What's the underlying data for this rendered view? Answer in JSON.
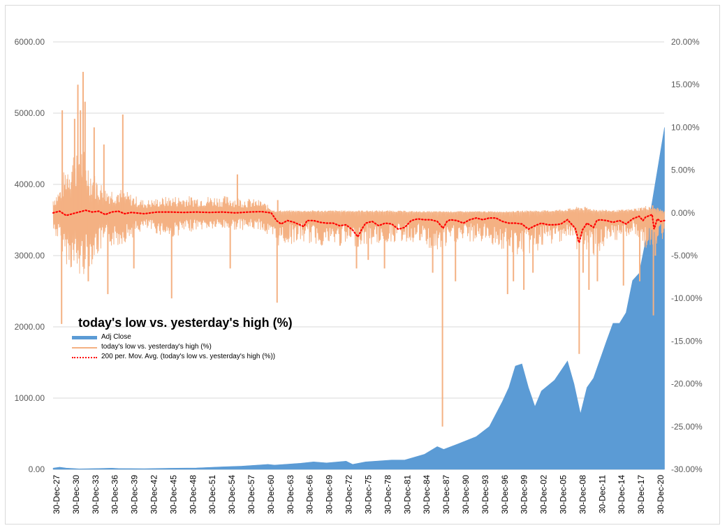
{
  "chart_data": {
    "type": "line",
    "title": "today's low vs. yesterday's high (%)",
    "left_axis": {
      "ticks": [
        "0.00",
        "1000.00",
        "2000.00",
        "3000.00",
        "4000.00",
        "5000.00",
        "6000.00"
      ],
      "range": [
        0,
        6000
      ]
    },
    "right_axis": {
      "ticks": [
        "-30.00%",
        "-25.00%",
        "-20.00%",
        "-15.00%",
        "-10.00%",
        "-5.00%",
        "0.00%",
        "5.00%",
        "10.00%",
        "15.00%",
        "20.00%"
      ],
      "range": [
        -30,
        20
      ]
    },
    "x_axis": {
      "ticks": [
        "30-Dec-27",
        "30-Dec-30",
        "30-Dec-33",
        "30-Dec-36",
        "30-Dec-39",
        "30-Dec-42",
        "30-Dec-45",
        "30-Dec-48",
        "30-Dec-51",
        "30-Dec-54",
        "30-Dec-57",
        "30-Dec-60",
        "30-Dec-63",
        "30-Dec-66",
        "30-Dec-69",
        "30-Dec-72",
        "30-Dec-75",
        "30-Dec-78",
        "30-Dec-81",
        "30-Dec-84",
        "30-Dec-87",
        "30-Dec-90",
        "30-Dec-93",
        "30-Dec-96",
        "30-Dec-99",
        "30-Dec-02",
        "30-Dec-05",
        "30-Dec-08",
        "30-Dec-11",
        "30-Dec-14",
        "30-Dec-17",
        "30-Dec-20"
      ],
      "range": [
        1927.99,
        2021.85
      ]
    },
    "grid": true,
    "legend_position": "left",
    "series": [
      {
        "name": "Adj Close",
        "type": "area",
        "axis": "left",
        "color": "#5b9bd5",
        "points": [
          [
            1928,
            18
          ],
          [
            1929,
            30
          ],
          [
            1930,
            18
          ],
          [
            1932,
            7
          ],
          [
            1935,
            12
          ],
          [
            1937,
            17
          ],
          [
            1938,
            12
          ],
          [
            1942,
            9
          ],
          [
            1946,
            16
          ],
          [
            1950,
            20
          ],
          [
            1954,
            35
          ],
          [
            1957,
            45
          ],
          [
            1961,
            70
          ],
          [
            1962,
            60
          ],
          [
            1966,
            85
          ],
          [
            1968,
            105
          ],
          [
            1970,
            90
          ],
          [
            1973,
            115
          ],
          [
            1974,
            70
          ],
          [
            1976,
            105
          ],
          [
            1980,
            130
          ],
          [
            1982,
            130
          ],
          [
            1985,
            210
          ],
          [
            1987,
            320
          ],
          [
            1988,
            280
          ],
          [
            1990,
            350
          ],
          [
            1993,
            460
          ],
          [
            1995,
            600
          ],
          [
            1997,
            950
          ],
          [
            1998,
            1150
          ],
          [
            1999,
            1450
          ],
          [
            2000,
            1480
          ],
          [
            2001,
            1150
          ],
          [
            2002,
            880
          ],
          [
            2003,
            1100
          ],
          [
            2005,
            1250
          ],
          [
            2007,
            1520
          ],
          [
            2008,
            1200
          ],
          [
            2009,
            780
          ],
          [
            2010,
            1150
          ],
          [
            2011,
            1280
          ],
          [
            2013,
            1800
          ],
          [
            2014,
            2050
          ],
          [
            2015,
            2050
          ],
          [
            2016,
            2200
          ],
          [
            2017,
            2650
          ],
          [
            2018,
            2750
          ],
          [
            2019,
            3200
          ],
          [
            2020,
            3750
          ],
          [
            2021,
            4300
          ],
          [
            2021.9,
            4800
          ]
        ]
      },
      {
        "name": "today's low vs. yesterday's high (%)",
        "type": "line",
        "axis": "right",
        "color": "#f4b183",
        "band": [
          [
            1928,
            -2.5,
            2.0
          ],
          [
            1929,
            -3.5,
            3.0
          ],
          [
            1930,
            -6,
            6
          ],
          [
            1932,
            -8,
            9
          ],
          [
            1934,
            -6,
            5
          ],
          [
            1936,
            -4,
            3
          ],
          [
            1938,
            -4,
            3
          ],
          [
            1942,
            -2,
            1.5
          ],
          [
            1946,
            -3,
            2
          ],
          [
            1950,
            -2,
            2
          ],
          [
            1955,
            -2,
            2
          ],
          [
            1960,
            -2,
            1.5
          ],
          [
            1962,
            -4,
            0.3
          ],
          [
            1966,
            -3.5,
            0.3
          ],
          [
            1970,
            -4,
            0.3
          ],
          [
            1975,
            -4,
            0.3
          ],
          [
            1980,
            -3.5,
            0.3
          ],
          [
            1984,
            -3.5,
            0.2
          ],
          [
            1987,
            -5,
            0.2
          ],
          [
            1990,
            -3.5,
            0.2
          ],
          [
            1995,
            -3.5,
            0.2
          ],
          [
            1998,
            -5,
            0.2
          ],
          [
            2001,
            -5,
            0.3
          ],
          [
            2004,
            -4,
            0.3
          ],
          [
            2007,
            -3,
            0.5
          ],
          [
            2009,
            -5,
            0.8
          ],
          [
            2011,
            -5,
            0.5
          ],
          [
            2014,
            -4,
            0.3
          ],
          [
            2017,
            -2.5,
            0.5
          ],
          [
            2020,
            -5,
            1
          ],
          [
            2021.9,
            -3,
            0.2
          ]
        ],
        "spikes": [
          [
            1929.3,
            -13
          ],
          [
            1929.4,
            12
          ],
          [
            1931.3,
            11
          ],
          [
            1931.8,
            15
          ],
          [
            1932.2,
            12
          ],
          [
            1932.6,
            16.5
          ],
          [
            1932.9,
            13
          ],
          [
            1933.4,
            -8
          ],
          [
            1934.3,
            10
          ],
          [
            1935.8,
            8
          ],
          [
            1936.4,
            -9.5
          ],
          [
            1938.7,
            11.5
          ],
          [
            1940.4,
            -6.5
          ],
          [
            1946.2,
            -10
          ],
          [
            1955.2,
            -6.5
          ],
          [
            1956.3,
            4.5
          ],
          [
            1962.4,
            -10.5
          ],
          [
            1962.5,
            1.5
          ],
          [
            1974.6,
            -6.5
          ],
          [
            1976.4,
            -5.5
          ],
          [
            1978.9,
            -6.5
          ],
          [
            1986.3,
            -7
          ],
          [
            1987.8,
            -25
          ],
          [
            1989.8,
            -8
          ],
          [
            1997.8,
            -9.5
          ],
          [
            1998.7,
            -8
          ],
          [
            2000.3,
            -9
          ],
          [
            2001.7,
            -7
          ],
          [
            2008.8,
            -16.5
          ],
          [
            2009.4,
            -7
          ],
          [
            2010.3,
            -9
          ],
          [
            2011.6,
            -8
          ],
          [
            2015.6,
            -8.5
          ],
          [
            2018.1,
            -8
          ],
          [
            2020.2,
            -12
          ],
          [
            2020.5,
            -5
          ]
        ]
      },
      {
        "name": "200 per. Mov. Avg. (today's low vs. yesterday's high (%))",
        "type": "line",
        "axis": "right",
        "color": "#ff0000",
        "style": "dotted",
        "points": [
          [
            1928,
            0
          ],
          [
            1929,
            0.2
          ],
          [
            1930,
            -0.3
          ],
          [
            1931,
            -0.1
          ],
          [
            1932,
            0.1
          ],
          [
            1933,
            0.3
          ],
          [
            1934,
            0.1
          ],
          [
            1935,
            0.2
          ],
          [
            1936,
            -0.2
          ],
          [
            1937,
            0.1
          ],
          [
            1938,
            0.2
          ],
          [
            1939,
            -0.1
          ],
          [
            1940,
            0.05
          ],
          [
            1942,
            -0.1
          ],
          [
            1944,
            0.1
          ],
          [
            1946,
            0.1
          ],
          [
            1948,
            0.05
          ],
          [
            1950,
            0.1
          ],
          [
            1952,
            0.05
          ],
          [
            1954,
            0.1
          ],
          [
            1956,
            0
          ],
          [
            1958,
            0.1
          ],
          [
            1960,
            0.15
          ],
          [
            1961.5,
            0
          ],
          [
            1962.3,
            -0.9
          ],
          [
            1963,
            -1.3
          ],
          [
            1964,
            -0.9
          ],
          [
            1965,
            -1.1
          ],
          [
            1966.5,
            -1.6
          ],
          [
            1967,
            -0.9
          ],
          [
            1968,
            -0.9
          ],
          [
            1969,
            -1.1
          ],
          [
            1970,
            -1.2
          ],
          [
            1971,
            -1.2
          ],
          [
            1972,
            -1.5
          ],
          [
            1973,
            -1.4
          ],
          [
            1974,
            -2.0
          ],
          [
            1974.8,
            -2.8
          ],
          [
            1975.5,
            -1.8
          ],
          [
            1976,
            -1.2
          ],
          [
            1977,
            -1.0
          ],
          [
            1978,
            -1.5
          ],
          [
            1979,
            -1.2
          ],
          [
            1980,
            -1.3
          ],
          [
            1981,
            -1.9
          ],
          [
            1982,
            -1.7
          ],
          [
            1983,
            -0.9
          ],
          [
            1984,
            -0.7
          ],
          [
            1985,
            -0.8
          ],
          [
            1986,
            -0.8
          ],
          [
            1987,
            -1.0
          ],
          [
            1987.9,
            -1.8
          ],
          [
            1988.5,
            -1.0
          ],
          [
            1989,
            -0.8
          ],
          [
            1990,
            -0.9
          ],
          [
            1991,
            -1.2
          ],
          [
            1992,
            -0.8
          ],
          [
            1993,
            -0.6
          ],
          [
            1994,
            -0.8
          ],
          [
            1995,
            -0.6
          ],
          [
            1996,
            -0.6
          ],
          [
            1997,
            -1.0
          ],
          [
            1998,
            -1.2
          ],
          [
            1999,
            -1.2
          ],
          [
            2000,
            -1.3
          ],
          [
            2001,
            -1.9
          ],
          [
            2002,
            -1.5
          ],
          [
            2003,
            -1.2
          ],
          [
            2004,
            -1.4
          ],
          [
            2005,
            -1.4
          ],
          [
            2006,
            -1.3
          ],
          [
            2007,
            -0.8
          ],
          [
            2008.2,
            -1.8
          ],
          [
            2008.8,
            -3.5
          ],
          [
            2009.3,
            -2.0
          ],
          [
            2010,
            -1.2
          ],
          [
            2011,
            -1.7
          ],
          [
            2011.5,
            -0.9
          ],
          [
            2012,
            -0.8
          ],
          [
            2013,
            -0.9
          ],
          [
            2014,
            -1.1
          ],
          [
            2015,
            -0.9
          ],
          [
            2016,
            -1.3
          ],
          [
            2017,
            -0.7
          ],
          [
            2018,
            -0.4
          ],
          [
            2018.6,
            -0.9
          ],
          [
            2019,
            -0.5
          ],
          [
            2020,
            -0.2
          ],
          [
            2020.3,
            -1.9
          ],
          [
            2020.8,
            -0.7
          ],
          [
            2021.3,
            -1.0
          ],
          [
            2021.9,
            -0.9
          ]
        ]
      }
    ]
  },
  "legend": {
    "items": [
      {
        "label": "Adj Close",
        "color": "#5b9bd5"
      },
      {
        "label": "today's low vs. yesterday's high (%)",
        "color": "#f4b183"
      },
      {
        "label": "200 per. Mov. Avg. (today's low vs. yesterday's high (%))",
        "color": "#ff0000"
      }
    ]
  }
}
